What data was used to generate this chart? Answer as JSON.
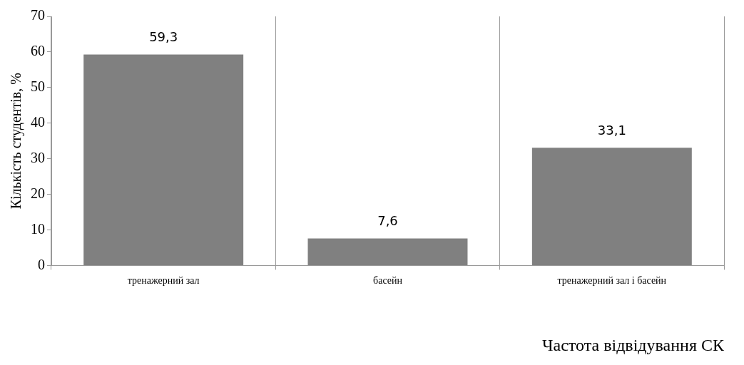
{
  "chart_data": {
    "type": "bar",
    "ylabel": "Кількість студентів, %",
    "xlabel": "Частота відвідування СК",
    "categories": [
      "тренажерний зал",
      "басейн",
      "тренажерний зал і басейн"
    ],
    "values": [
      59.3,
      7.6,
      33.1
    ],
    "value_labels": [
      "59,3",
      "7,6",
      "33,1"
    ],
    "color": "#808080",
    "ylim": [
      0,
      70
    ],
    "yticks": [
      0,
      10,
      20,
      30,
      40,
      50,
      60,
      70
    ],
    "grid": "x",
    "legend": false
  }
}
